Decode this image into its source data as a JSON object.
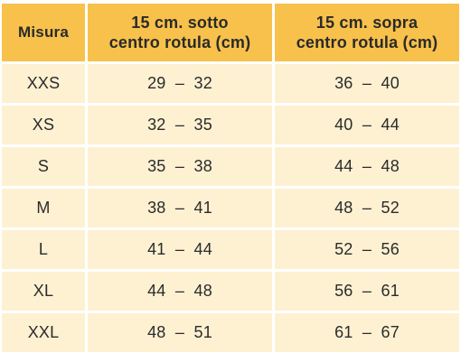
{
  "table": {
    "headers": {
      "size": "Misura",
      "below": [
        "15 cm. sotto",
        "centro rotula (cm)"
      ],
      "above": [
        "15 cm. sopra",
        "centro rotula (cm)"
      ]
    },
    "rows": [
      {
        "size": "XXS",
        "below": "29  –  32",
        "above": "36  –  40"
      },
      {
        "size": "XS",
        "below": "32  –  35",
        "above": "40  –  44"
      },
      {
        "size": "S",
        "below": "35  –  38",
        "above": "44  –  48"
      },
      {
        "size": "M",
        "below": "38  –  41",
        "above": "48  –  52"
      },
      {
        "size": "L",
        "below": "41  –  44",
        "above": "52  –  56"
      },
      {
        "size": "XL",
        "below": "44  –  48",
        "above": "56  –  61"
      },
      {
        "size": "XXL",
        "below": "48  –  51",
        "above": "61  –  67"
      }
    ]
  },
  "colors": {
    "header_bg": "#f7c14b",
    "cell_bg": "#fdf1d2",
    "text": "#2b2b2b"
  }
}
